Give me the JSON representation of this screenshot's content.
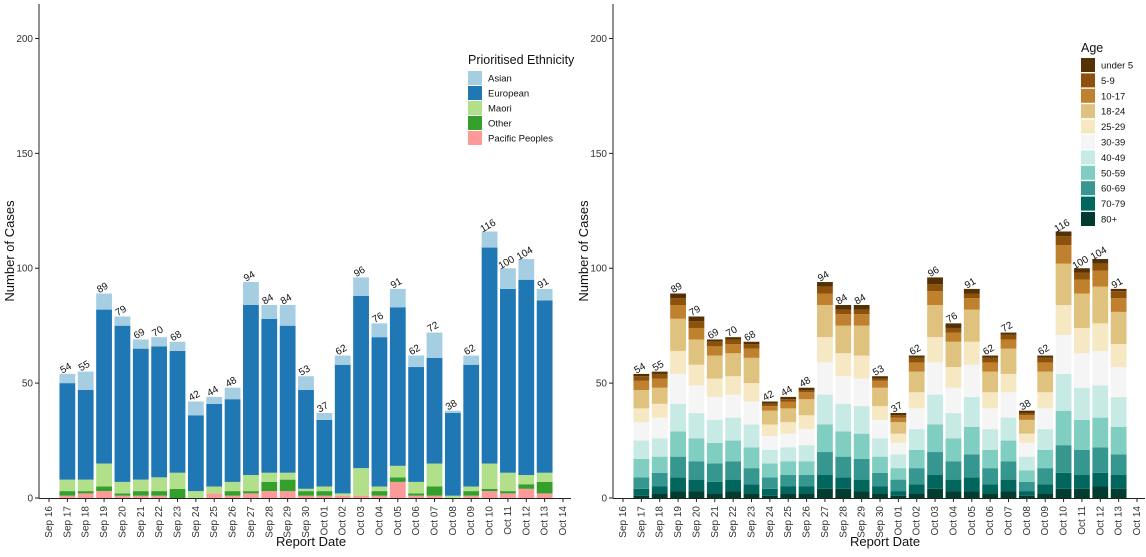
{
  "chart_data": [
    {
      "type": "bar",
      "stacked": true,
      "categories": [
        "Sep 16",
        "Sep 17",
        "Sep 18",
        "Sep 19",
        "Sep 20",
        "Sep 21",
        "Sep 22",
        "Sep 23",
        "Sep 24",
        "Sep 25",
        "Sep 26",
        "Sep 27",
        "Sep 28",
        "Sep 29",
        "Sep 30",
        "Oct 01",
        "Oct 02",
        "Oct 03",
        "Oct 04",
        "Oct 05",
        "Oct 06",
        "Oct 07",
        "Oct 08",
        "Oct 09",
        "Oct 10",
        "Oct 11",
        "Oct 12",
        "Oct 13",
        "Oct 14"
      ],
      "totals": [
        null,
        54,
        55,
        89,
        79,
        69,
        70,
        68,
        42,
        44,
        48,
        94,
        84,
        84,
        53,
        37,
        62,
        96,
        76,
        91,
        62,
        72,
        38,
        62,
        116,
        100,
        104,
        91,
        null
      ],
      "series": [
        {
          "name": "Pacific Peoples",
          "color": "#fb9a99",
          "values": [
            0,
            1,
            2,
            3,
            1,
            1,
            1,
            0,
            0,
            2,
            1,
            2,
            3,
            3,
            1,
            1,
            1,
            1,
            1,
            7,
            1,
            1,
            0,
            1,
            3,
            2,
            4,
            2,
            0
          ]
        },
        {
          "name": "Other",
          "color": "#33a02c",
          "values": [
            0,
            2,
            1,
            2,
            1,
            2,
            2,
            4,
            0,
            0,
            2,
            1,
            4,
            5,
            2,
            2,
            0,
            0,
            2,
            2,
            1,
            4,
            0,
            2,
            1,
            1,
            2,
            5,
            0
          ]
        },
        {
          "name": "Maori",
          "color": "#b2df8a",
          "values": [
            0,
            5,
            5,
            10,
            5,
            5,
            6,
            7,
            3,
            3,
            4,
            7,
            4,
            3,
            1,
            2,
            1,
            12,
            2,
            5,
            5,
            10,
            1,
            2,
            11,
            8,
            4,
            4,
            0
          ]
        },
        {
          "name": "European",
          "color": "#1f78b4",
          "values": [
            0,
            42,
            39,
            67,
            68,
            57,
            57,
            53,
            33,
            36,
            36,
            74,
            67,
            64,
            43,
            29,
            56,
            75,
            65,
            69,
            50,
            46,
            36,
            53,
            94,
            80,
            85,
            75,
            0
          ]
        },
        {
          "name": "Asian",
          "color": "#a6cee3",
          "values": [
            0,
            4,
            8,
            7,
            4,
            4,
            4,
            4,
            6,
            3,
            5,
            10,
            6,
            9,
            6,
            3,
            4,
            8,
            6,
            8,
            5,
            11,
            1,
            4,
            7,
            9,
            9,
            5,
            0
          ]
        }
      ],
      "legend_title": "Prioritised Ethnicity",
      "legend_labels": [
        "Asian",
        "European",
        "Maori",
        "Other",
        "Pacific Peoples"
      ],
      "legend_colors": [
        "#a6cee3",
        "#1f78b4",
        "#b2df8a",
        "#33a02c",
        "#fb9a99"
      ],
      "xlabel": "Report Date",
      "ylabel": "Number of Cases",
      "ylim": [
        0,
        215
      ],
      "yticks": [
        0,
        50,
        100,
        150,
        200
      ],
      "legend_position": "top-right"
    },
    {
      "type": "bar",
      "stacked": true,
      "categories": [
        "Sep 16",
        "Sep 17",
        "Sep 18",
        "Sep 19",
        "Sep 20",
        "Sep 21",
        "Sep 22",
        "Sep 23",
        "Sep 24",
        "Sep 25",
        "Sep 26",
        "Sep 27",
        "Sep 28",
        "Sep 29",
        "Sep 30",
        "Oct 01",
        "Oct 02",
        "Oct 03",
        "Oct 04",
        "Oct 05",
        "Oct 06",
        "Oct 07",
        "Oct 08",
        "Oct 09",
        "Oct 10",
        "Oct 11",
        "Oct 12",
        "Oct 13",
        "Oct 14"
      ],
      "totals": [
        null,
        54,
        55,
        89,
        79,
        69,
        70,
        68,
        42,
        44,
        48,
        94,
        84,
        84,
        53,
        37,
        62,
        96,
        76,
        91,
        62,
        72,
        38,
        62,
        116,
        100,
        104,
        91,
        null
      ],
      "series": [
        {
          "name": "80+",
          "color": "#003c30",
          "values": [
            0,
            1,
            2,
            3,
            3,
            2,
            3,
            2,
            1,
            2,
            2,
            4,
            4,
            3,
            2,
            1,
            2,
            4,
            3,
            3,
            2,
            3,
            1,
            2,
            4,
            4,
            5,
            4,
            0
          ]
        },
        {
          "name": "70-79",
          "color": "#01665e",
          "values": [
            0,
            3,
            3,
            6,
            5,
            5,
            5,
            4,
            3,
            3,
            3,
            6,
            5,
            5,
            3,
            2,
            4,
            6,
            5,
            6,
            4,
            5,
            2,
            4,
            7,
            6,
            6,
            6,
            0
          ]
        },
        {
          "name": "60-69",
          "color": "#35978f",
          "values": [
            0,
            5,
            6,
            9,
            8,
            8,
            8,
            7,
            5,
            5,
            5,
            10,
            9,
            9,
            6,
            5,
            7,
            10,
            8,
            10,
            7,
            8,
            4,
            7,
            12,
            11,
            11,
            9,
            0
          ]
        },
        {
          "name": "50-59",
          "color": "#80cdc1",
          "values": [
            0,
            8,
            7,
            11,
            10,
            9,
            9,
            9,
            6,
            6,
            6,
            12,
            11,
            11,
            7,
            5,
            8,
            12,
            10,
            12,
            8,
            9,
            5,
            8,
            15,
            13,
            13,
            12,
            0
          ]
        },
        {
          "name": "40-49",
          "color": "#c7eae5",
          "values": [
            0,
            8,
            8,
            12,
            11,
            10,
            10,
            10,
            6,
            6,
            7,
            13,
            12,
            12,
            8,
            6,
            9,
            13,
            11,
            13,
            9,
            10,
            6,
            9,
            16,
            14,
            14,
            13,
            0
          ]
        },
        {
          "name": "30-39",
          "color": "#f5f5f5",
          "values": [
            0,
            8,
            9,
            13,
            12,
            10,
            10,
            10,
            6,
            6,
            7,
            14,
            12,
            12,
            8,
            5,
            9,
            14,
            11,
            14,
            9,
            11,
            6,
            9,
            17,
            15,
            15,
            13,
            0
          ]
        },
        {
          "name": "25-29",
          "color": "#f6e8c3",
          "values": [
            0,
            6,
            6,
            10,
            9,
            8,
            8,
            8,
            5,
            5,
            6,
            11,
            10,
            10,
            6,
            4,
            7,
            11,
            9,
            10,
            7,
            8,
            4,
            7,
            13,
            11,
            12,
            10,
            0
          ]
        },
        {
          "name": "18-24",
          "color": "#dfc27d",
          "values": [
            0,
            8,
            7,
            14,
            11,
            10,
            10,
            11,
            6,
            6,
            7,
            14,
            12,
            13,
            8,
            5,
            9,
            14,
            11,
            14,
            9,
            11,
            6,
            9,
            18,
            15,
            16,
            14,
            0
          ]
        },
        {
          "name": "10-17",
          "color": "#bf812d",
          "values": [
            0,
            4,
            4,
            6,
            5,
            4,
            4,
            4,
            2,
            3,
            3,
            5,
            5,
            5,
            3,
            2,
            4,
            6,
            4,
            5,
            4,
            4,
            2,
            4,
            8,
            6,
            7,
            6,
            0
          ]
        },
        {
          "name": "5-9",
          "color": "#8c510a",
          "values": [
            0,
            2,
            2,
            3,
            3,
            2,
            2,
            2,
            1,
            1,
            1,
            3,
            2,
            2,
            1,
            1,
            2,
            3,
            2,
            2,
            2,
            2,
            1,
            2,
            4,
            3,
            3,
            3,
            0
          ]
        },
        {
          "name": "under 5",
          "color": "#543005",
          "values": [
            0,
            1,
            1,
            2,
            2,
            1,
            1,
            1,
            1,
            1,
            1,
            2,
            2,
            2,
            1,
            1,
            1,
            3,
            2,
            2,
            1,
            1,
            1,
            1,
            2,
            2,
            2,
            1,
            0
          ]
        }
      ],
      "legend_title": "Age",
      "legend_labels": [
        "under 5",
        "5-9",
        "10-17",
        "18-24",
        "25-29",
        "30-39",
        "40-49",
        "50-59",
        "60-69",
        "70-79",
        "80+"
      ],
      "legend_colors": [
        "#543005",
        "#8c510a",
        "#bf812d",
        "#dfc27d",
        "#f6e8c3",
        "#f5f5f5",
        "#c7eae5",
        "#80cdc1",
        "#35978f",
        "#01665e",
        "#003c30"
      ],
      "xlabel": "Report Date",
      "ylabel": "Number of Cases",
      "ylim": [
        0,
        215
      ],
      "yticks": [
        0,
        50,
        100,
        150,
        200
      ],
      "legend_position": "top-right"
    }
  ]
}
